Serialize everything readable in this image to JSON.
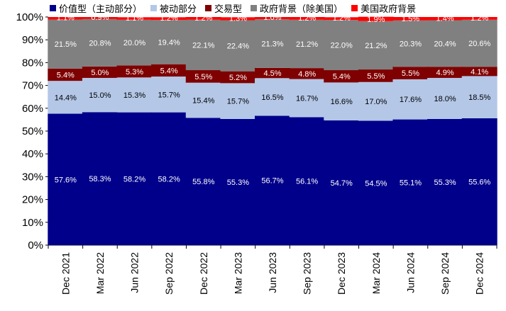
{
  "chart_data": {
    "type": "bar",
    "stacked": true,
    "categories": [
      "Dec 2021",
      "Mar 2022",
      "Jun 2022",
      "Sep 2022",
      "Dec 2022",
      "Mar 2023",
      "Jun 2023",
      "Sep 2023",
      "Dec 2023",
      "Mar 2024",
      "Jun 2024",
      "Sep 2024",
      "Dec 2024"
    ],
    "ylim": [
      0,
      100
    ],
    "yticks": [
      "0%",
      "10%",
      "20%",
      "30%",
      "40%",
      "50%",
      "60%",
      "70%",
      "80%",
      "90%",
      "100%"
    ],
    "legend_position": "top",
    "grid": false,
    "series": [
      {
        "name": "价值型（主动部分）",
        "color": "#00008B",
        "label_color": "#ffffff",
        "values": [
          57.6,
          58.3,
          58.2,
          58.2,
          55.8,
          55.3,
          56.7,
          56.1,
          54.7,
          54.5,
          55.1,
          55.3,
          55.6
        ],
        "labels": [
          "57.6%",
          "58.3%",
          "58.2%",
          "58.2%",
          "55.8%",
          "55.3%",
          "56.7%",
          "56.1%",
          "54.7%",
          "54.5%",
          "55.1%",
          "55.3%",
          "55.6%"
        ]
      },
      {
        "name": "被动部分",
        "color": "#B4C7E7",
        "label_color": "#000000",
        "values": [
          14.4,
          15.0,
          15.3,
          15.7,
          15.4,
          15.7,
          16.5,
          16.7,
          16.6,
          17.0,
          17.6,
          18.0,
          18.5
        ],
        "labels": [
          "14.4%",
          "15.0%",
          "15.3%",
          "15.7%",
          "15.4%",
          "15.7%",
          "16.5%",
          "16.7%",
          "16.6%",
          "17.0%",
          "17.6%",
          "18.0%",
          "18.5%"
        ]
      },
      {
        "name": "交易型",
        "color": "#7F0000",
        "label_color": "#ffffff",
        "values": [
          5.4,
          5.0,
          5.3,
          5.4,
          5.5,
          5.2,
          4.5,
          4.8,
          5.4,
          5.5,
          5.5,
          4.9,
          4.1
        ],
        "labels": [
          "5.4%",
          "5.0%",
          "5.3%",
          "5.4%",
          "5.5%",
          "5.2%",
          "4.5%",
          "4.8%",
          "5.4%",
          "5.5%",
          "5.5%",
          "4.9%",
          "4.1%"
        ]
      },
      {
        "name": "政府背景（除美国）",
        "color": "#808080",
        "label_color": "#ffffff",
        "values": [
          21.5,
          20.8,
          20.0,
          19.4,
          22.1,
          22.4,
          21.3,
          21.2,
          22.0,
          21.2,
          20.3,
          20.4,
          20.6
        ],
        "labels": [
          "21.5%",
          "20.8%",
          "20.0%",
          "19.4%",
          "22.1%",
          "22.4%",
          "21.3%",
          "21.2%",
          "22.0%",
          "21.2%",
          "20.3%",
          "20.4%",
          "20.6%"
        ]
      },
      {
        "name": "美国政府背景",
        "color": "#FF0000",
        "label_color": "#ffffff",
        "values": [
          1.1,
          0.9,
          1.1,
          1.2,
          1.2,
          1.3,
          1.0,
          1.2,
          1.2,
          1.9,
          1.5,
          1.4,
          1.2
        ],
        "labels": [
          "1.1%",
          "0.9%",
          "1.1%",
          "1.2%",
          "1.2%",
          "1.3%",
          "1.0%",
          "1.2%",
          "1.2%",
          "1.9%",
          "1.5%",
          "1.4%",
          "1.2%"
        ]
      }
    ]
  }
}
